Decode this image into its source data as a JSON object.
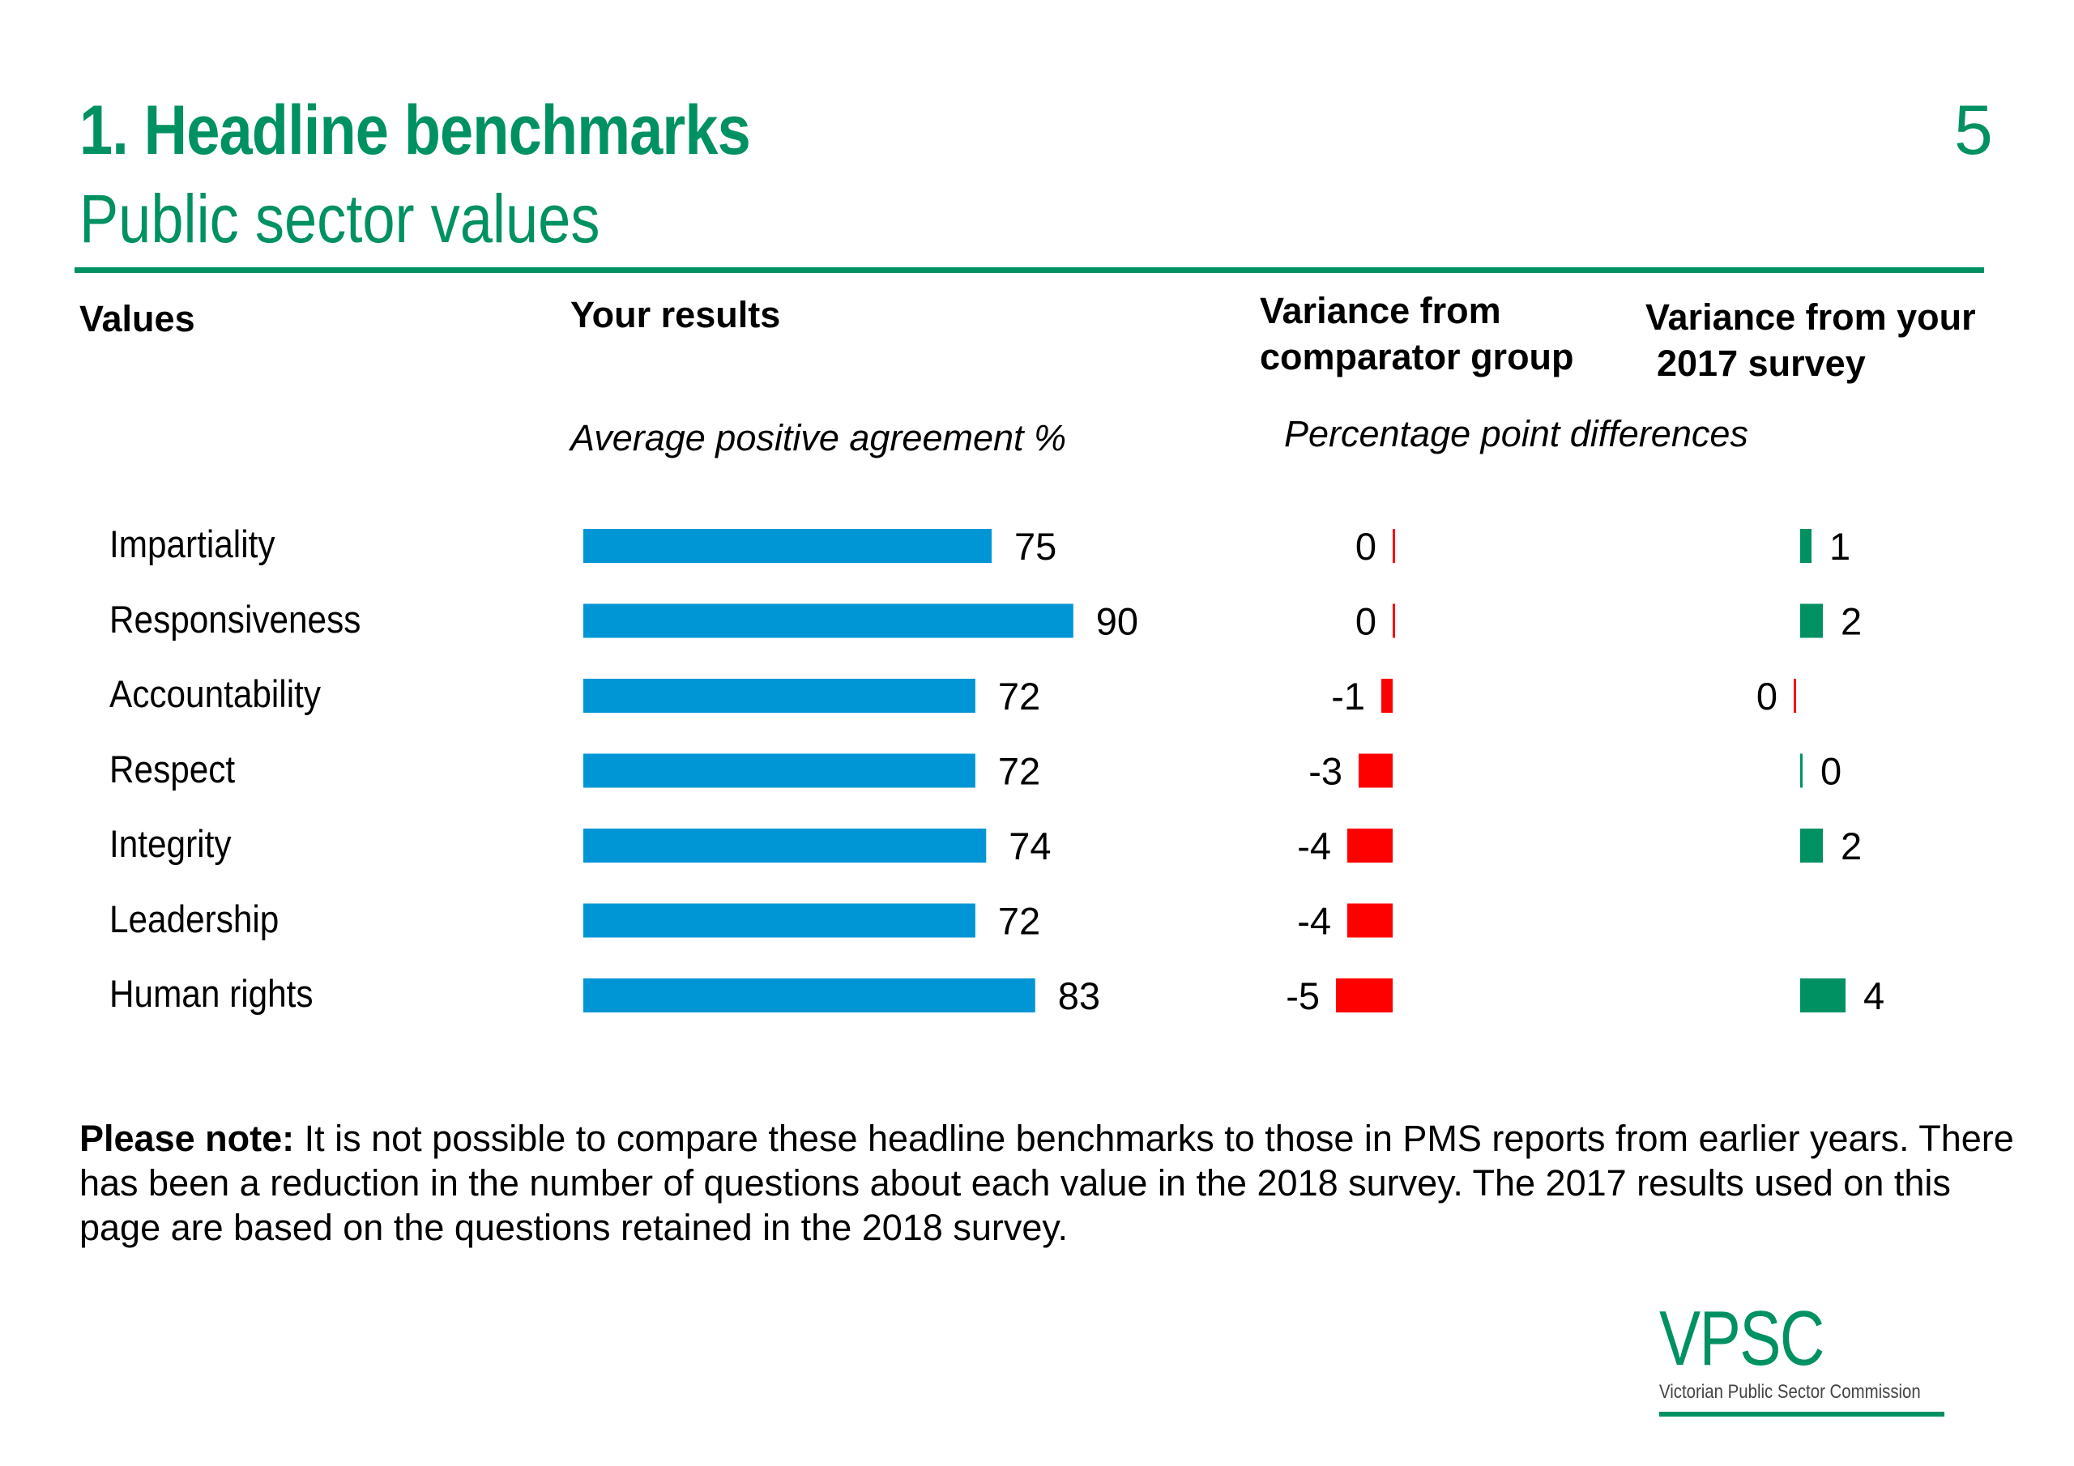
{
  "header": {
    "title": "1. Headline benchmarks",
    "subtitle": "Public sector values",
    "page_number": "5"
  },
  "columns": {
    "values": "Values",
    "results": "Your results",
    "comparator_line1": "Variance from",
    "comparator_line2": "comparator group",
    "survey_line1": "Variance from your",
    "survey_line2": "2017 survey",
    "results_sub": "Average positive agreement %",
    "variance_sub": "Percentage point differences"
  },
  "colors": {
    "brand_green": "#009163",
    "bar_blue": "#0096d6",
    "negative_red": "#ff0000",
    "positive_green": "#009163"
  },
  "chart_data": {
    "type": "bar",
    "categories": [
      "Impartiality",
      "Responsiveness",
      "Accountability",
      "Respect",
      "Integrity",
      "Leadership",
      "Human rights"
    ],
    "series": [
      {
        "name": "Your results",
        "values": [
          75,
          90,
          72,
          72,
          74,
          72,
          83
        ]
      },
      {
        "name": "Variance from comparator group",
        "values": [
          0,
          0,
          -1,
          -3,
          -4,
          -4,
          -5
        ]
      },
      {
        "name": "Variance from your 2017 survey",
        "values": [
          1,
          2,
          0,
          0,
          2,
          null,
          4
        ]
      }
    ]
  },
  "note": {
    "label": "Please note:",
    "text": " It is not possible to compare these headline benchmarks to those in PMS reports from earlier years. There has been a reduction in the number of questions about each value in the 2018 survey. The 2017 results used on this page are based on the questions retained in the 2018 survey."
  },
  "logo": {
    "text": "VPSC",
    "subtext": "Victorian Public Sector Commission"
  }
}
